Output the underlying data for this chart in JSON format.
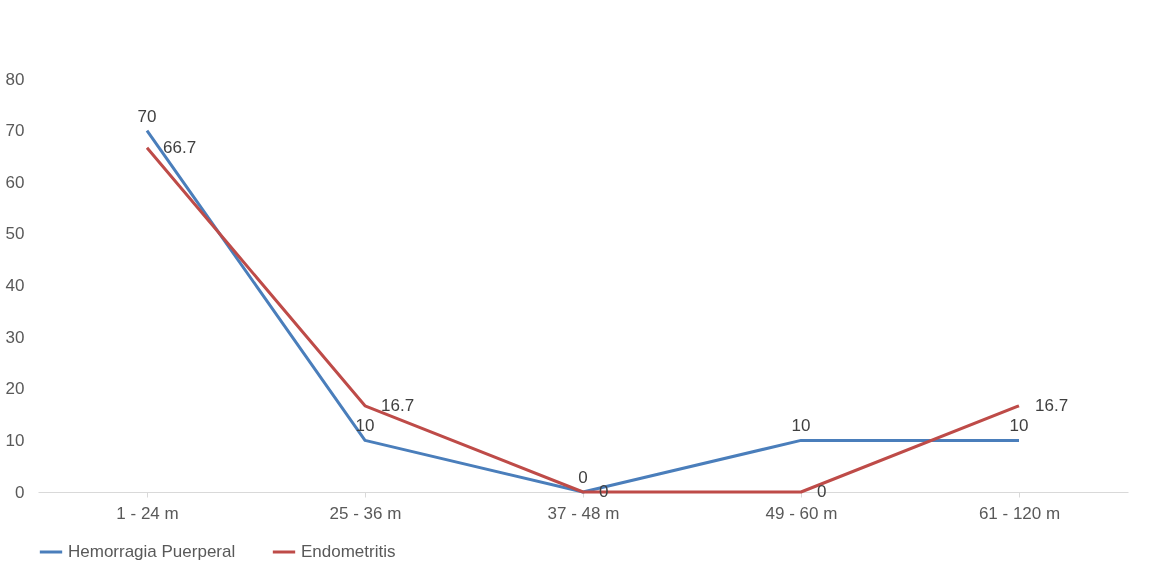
{
  "chart_data": {
    "type": "line",
    "categories": [
      "1 - 24 m",
      "25 - 36 m",
      "37 - 48 m",
      "49 - 60 m",
      "61 - 120 m"
    ],
    "series": [
      {
        "name": "Hemorragia Puerperal",
        "color": "#4a7ebb",
        "values": [
          70,
          10,
          0,
          10,
          10
        ]
      },
      {
        "name": "Endometritis",
        "color": "#be4b48",
        "values": [
          66.7,
          16.7,
          0,
          0,
          16.7
        ]
      }
    ],
    "ylim": [
      0,
      80
    ],
    "yticks": [
      0,
      10,
      20,
      30,
      40,
      50,
      60,
      70,
      80
    ],
    "grid": false,
    "legend": "bottom",
    "data_labels": true,
    "marker": "none",
    "line_style": "solid"
  }
}
